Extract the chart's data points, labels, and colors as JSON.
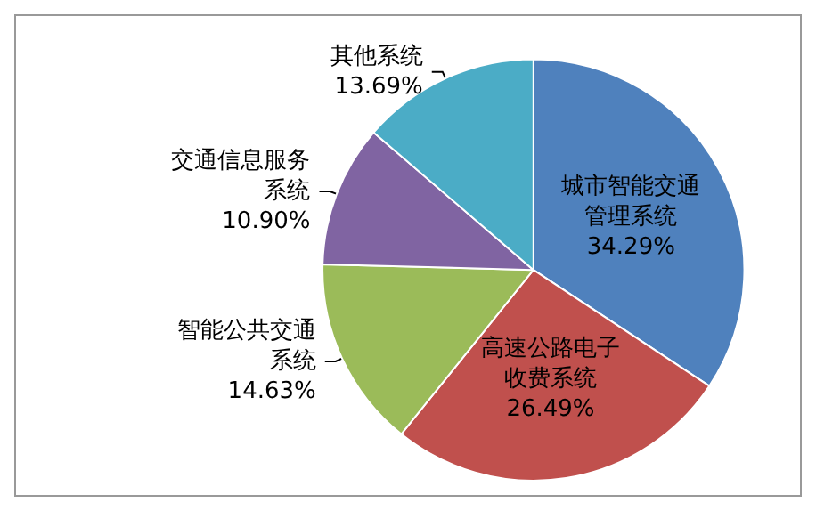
{
  "chart_data": {
    "type": "pie",
    "categories": [
      "城市智能交通管理系统",
      "高速公路电子收费系统",
      "智能公共交通系统",
      "交通信息服务系统",
      "其他系统"
    ],
    "values": [
      34.29,
      26.49,
      14.63,
      10.9,
      13.69
    ],
    "value_labels": [
      "34.29%",
      "26.49%",
      "14.63%",
      "10.90%",
      "13.69%"
    ],
    "colors": [
      "#4f81bd",
      "#c0504d",
      "#9bbb59",
      "#8064a2",
      "#4bacc6"
    ]
  }
}
